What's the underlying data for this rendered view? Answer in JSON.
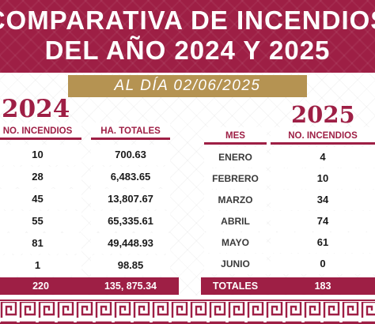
{
  "banner": {
    "line1": "COMPARATIVA DE INCENDIOS",
    "line2": "DEL AÑO 2024 Y 2025"
  },
  "date_label": "AL DÍA 02/06/2025",
  "left_table": {
    "year": "2024",
    "col_incendios": "NO. INCENDIOS",
    "col_hectareas": "HA. TOTALES",
    "rows": [
      {
        "incendios": "10",
        "hectareas": "700.63"
      },
      {
        "incendios": "28",
        "hectareas": "6,483.65"
      },
      {
        "incendios": "45",
        "hectareas": "13,807.67"
      },
      {
        "incendios": "55",
        "hectareas": "65,335.61"
      },
      {
        "incendios": "81",
        "hectareas": "49,448.93"
      },
      {
        "incendios": "1",
        "hectareas": "98.85"
      }
    ],
    "total_incendios": "220",
    "total_hectareas": "135, 875.34"
  },
  "right_table": {
    "year": "2025",
    "col_mes": "MES",
    "col_incendios": "NO. INCENDIOS",
    "rows": [
      {
        "mes": "ENERO",
        "incendios": "4"
      },
      {
        "mes": "FEBRERO",
        "incendios": "10"
      },
      {
        "mes": "MARZO",
        "incendios": "34"
      },
      {
        "mes": "ABRIL",
        "incendios": "74"
      },
      {
        "mes": "MAYO",
        "incendios": "61"
      },
      {
        "mes": "JUNIO",
        "incendios": "0"
      }
    ],
    "total_label": "TOTALES",
    "total_incendios": "183"
  },
  "colors": {
    "brand": "#9e1f45",
    "gold": "#b59352"
  }
}
